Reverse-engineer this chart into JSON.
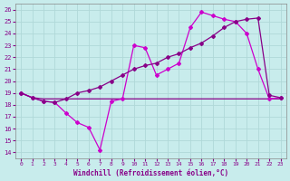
{
  "xlabel": "Windchill (Refroidissement éolien,°C)",
  "bg_color": "#c8ecec",
  "grid_color": "#b0d8d8",
  "line_color1": "#880088",
  "line_color2": "#cc00cc",
  "line_color3": "#880088",
  "xlim": [
    -0.5,
    23.5
  ],
  "ylim": [
    13.5,
    26.5
  ],
  "yticks": [
    14,
    15,
    16,
    17,
    18,
    19,
    20,
    21,
    22,
    23,
    24,
    25,
    26
  ],
  "xticks": [
    0,
    1,
    2,
    3,
    4,
    5,
    6,
    7,
    8,
    9,
    10,
    11,
    12,
    13,
    14,
    15,
    16,
    17,
    18,
    19,
    20,
    21,
    22,
    23
  ],
  "line1_x": [
    0,
    1,
    2,
    3,
    4,
    5,
    6,
    7,
    8,
    9,
    10,
    11,
    12,
    13,
    14,
    15,
    16,
    17,
    18,
    19,
    20,
    21,
    22,
    23
  ],
  "line1_y": [
    19.0,
    18.6,
    18.5,
    18.5,
    18.5,
    18.5,
    18.5,
    18.5,
    18.5,
    18.5,
    18.5,
    18.5,
    18.5,
    18.5,
    18.5,
    18.5,
    18.5,
    18.5,
    18.5,
    18.5,
    18.5,
    18.5,
    18.5,
    18.5
  ],
  "line2_x": [
    0,
    1,
    2,
    3,
    4,
    5,
    6,
    7,
    8,
    9,
    10,
    11,
    12,
    13,
    14,
    15,
    16,
    17,
    18,
    19,
    20,
    21,
    22,
    23
  ],
  "line2_y": [
    19.0,
    18.6,
    18.3,
    18.2,
    17.3,
    16.5,
    16.1,
    14.2,
    18.3,
    18.5,
    23.0,
    22.8,
    20.5,
    21.0,
    21.5,
    24.5,
    25.8,
    25.5,
    25.2,
    25.0,
    24.0,
    21.0,
    18.5,
    18.6
  ],
  "line3_x": [
    0,
    1,
    2,
    3,
    4,
    5,
    6,
    7,
    8,
    9,
    10,
    11,
    12,
    13,
    14,
    15,
    16,
    17,
    18,
    19,
    20,
    21,
    22,
    23
  ],
  "line3_y": [
    19.0,
    18.6,
    18.3,
    18.2,
    18.5,
    19.0,
    19.2,
    19.5,
    20.0,
    20.5,
    21.0,
    21.3,
    21.5,
    22.0,
    22.3,
    22.8,
    23.2,
    23.8,
    24.5,
    25.0,
    25.2,
    25.3,
    18.8,
    18.6
  ]
}
